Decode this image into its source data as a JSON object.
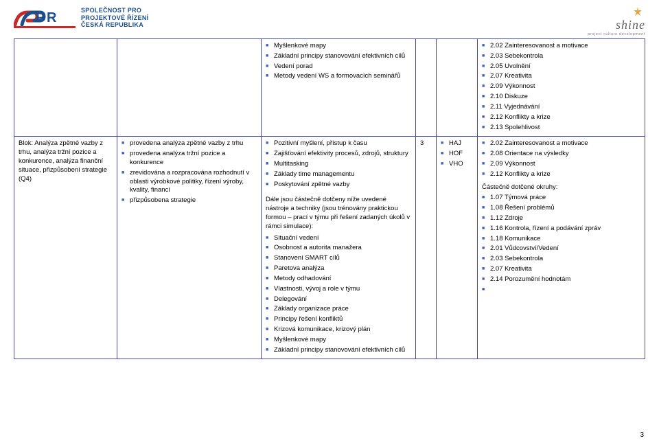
{
  "header": {
    "left_logo": {
      "line1": "SPOLEČNOST PRO",
      "line2": "PROJEKTOVÉ ŘÍZENÍ",
      "line3": "ČESKÁ REPUBLIKA"
    },
    "right_logo": {
      "brand": "shine",
      "tagline": "project culture development"
    }
  },
  "row1": {
    "col3_items": [
      "Myšlenkové mapy",
      "Základní principy stanovování efektivních cílů",
      "Vedení porad",
      "Metody vedení WS a formovacích seminářů"
    ],
    "col6_items": [
      "2.02 Zainteresovanost a motivace",
      "2.03 Sebekontrola",
      "2.05 Uvolnění",
      "2.07 Kreativita",
      "2.09 Výkonnost",
      "2.10 Diskuze",
      "2.11 Vyjednávání",
      "2.12 Konflikty a krize",
      "2.13 Spolehlivost"
    ]
  },
  "row2": {
    "col1_text": "Blok: Analýza zpětné vazby z trhu, analýza tržní pozice a konkurence, analýza finanční situace, přizpůsobení strategie (Q4)",
    "col2_items": [
      "provedena analýza zpětné vazby z trhu",
      "provedena analýza tržní pozice a konkurence",
      "zrevidována a rozpracována rozhodnutí v oblasti výrobkové politiky, řízení výroby, kvality, financí",
      "přizpůsobena strategie"
    ],
    "col3_top_items": [
      "Pozitivní myšlení, přístup k času",
      "Zajišťování efektivity procesů, zdrojů, struktury",
      "Multitasking",
      "Základy time managementu",
      "Poskytování zpětné vazby"
    ],
    "col3_mid_para": "Dále jsou částečně dotčeny níže uvedené nástroje a techniky (jsou trénovány praktickou formou – prací v týmu při řešení zadaných úkolů v rámci simulace):",
    "col3_bottom_items": [
      "Situační vedení",
      "Osobnost a autorita manažera",
      "Stanovení SMART cílů",
      "Paretova analýza",
      "Metody odhadování",
      "Vlastnosti, vývoj a role v týmu",
      "Delegování",
      "Základy organizace práce",
      "Principy řešení konfliktů",
      "Krizová komunikace, krizový plán",
      "Myšlenkové mapy",
      "Základní principy stanovování efektivních cílů"
    ],
    "col4_value": "3",
    "col5_items": [
      "HAJ",
      "HOF",
      "VHO"
    ],
    "col6_top_items": [
      "2.02 Zainteresovanost a motivace",
      "2.08 Orientace na výsledky",
      "2.09 Výkonnost",
      "2.12 Konflikty a krize"
    ],
    "col6_sub_label": "Částečně dotčené okruhy:",
    "col6_bottom_items": [
      "1.07 Týmová práce",
      "1.08 Řešení problémů",
      "1.12 Zdroje",
      "1.16 Kontrola, řízení a podávání zpráv",
      "1.18 Komunikace",
      "2.01 Vůdcovství/Vedení",
      "2.03 Sebekontrola",
      "2.07 Kreativita",
      "2.14 Porozumění hodnotám",
      ""
    ]
  },
  "page_number": "3",
  "colors": {
    "border": "#4a4a9a",
    "bullet": "#3b5fbf",
    "logo_blue": "#1b4f8a",
    "logo_red": "#c52b2b",
    "shine_orange": "#e8a33d"
  }
}
